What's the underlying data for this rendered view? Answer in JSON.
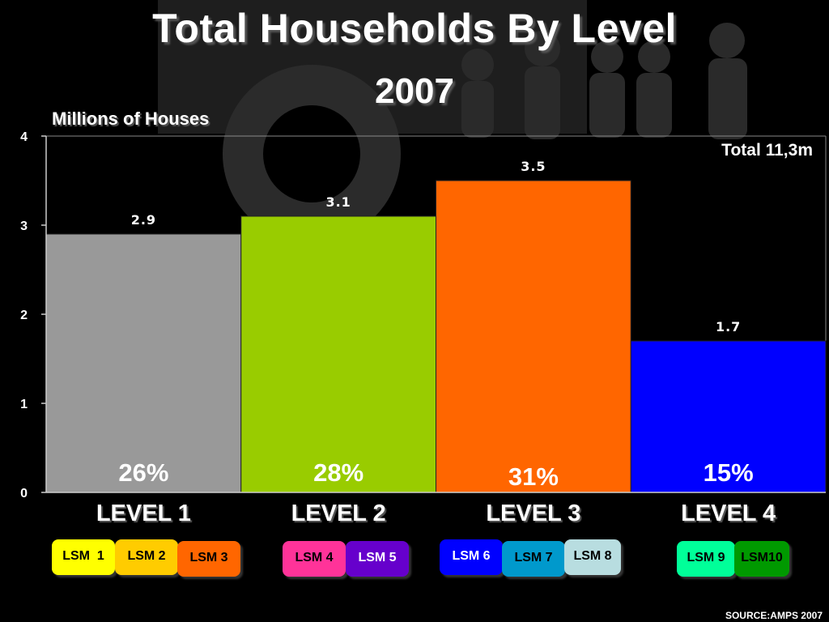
{
  "title": "Total Households By Level",
  "subtitle": "2007",
  "total_note": "Total 11,3m",
  "source": "SOURCE:AMPS 2007",
  "chart_data": {
    "type": "bar",
    "ylabel": "Millions of Houses",
    "ylim": [
      0,
      4
    ],
    "yticks": [
      "0",
      "1",
      "2",
      "3",
      "4"
    ],
    "categories": [
      "LEVEL 1",
      "LEVEL 2",
      "LEVEL 3",
      "LEVEL 4"
    ],
    "values": [
      2.9,
      3.1,
      3.5,
      1.7
    ],
    "value_labels": [
      "2.9",
      "3.1",
      "3.5",
      "1.7"
    ],
    "percent_labels": [
      "26%",
      "28%",
      "31%",
      "15%"
    ],
    "colors": [
      "#999999",
      "#99cc00",
      "#ff6600",
      "#0000ff"
    ],
    "grid": false
  },
  "lsm_groups": [
    [
      {
        "label": "LSM  1",
        "bg": "#ffff00",
        "fg": "#000000"
      },
      {
        "label": "LSM 2",
        "bg": "#ffcc00",
        "fg": "#000000"
      },
      {
        "label": "LSM 3",
        "bg": "#ff6600",
        "fg": "#000000"
      }
    ],
    [
      {
        "label": "LSM 4",
        "bg": "#ff3399",
        "fg": "#000000"
      },
      {
        "label": "LSM 5",
        "bg": "#6600cc",
        "fg": "#ffffff"
      }
    ],
    [
      {
        "label": "LSM 6",
        "bg": "#0000ff",
        "fg": "#ffffff"
      },
      {
        "label": "LSM 7",
        "bg": "#0099cc",
        "fg": "#000000"
      },
      {
        "label": "LSM 8",
        "bg": "#b8dde0",
        "fg": "#000000"
      }
    ],
    [
      {
        "label": "LSM 9",
        "bg": "#00ff99",
        "fg": "#000000"
      },
      {
        "label": "LSM10",
        "bg": "#009900",
        "fg": "#000000"
      }
    ]
  ]
}
